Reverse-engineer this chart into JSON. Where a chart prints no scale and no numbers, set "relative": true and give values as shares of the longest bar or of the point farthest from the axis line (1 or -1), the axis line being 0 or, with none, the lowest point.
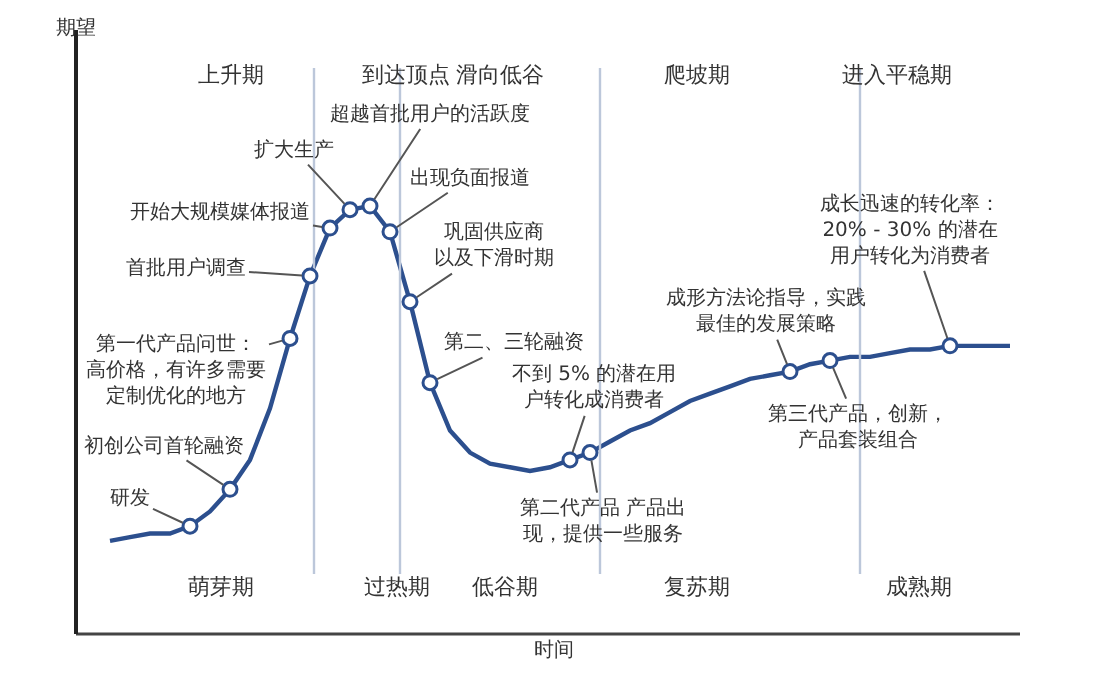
{
  "chart_data": {
    "type": "line",
    "xlabel": "时间",
    "relative": true,
    "tick_labels": false,
    "categories": [
      null,
      null,
      null,
      null,
      null,
      null,
      null,
      null,
      null,
      null,
      null,
      null,
      null,
      null,
      null,
      null,
      null,
      null,
      null,
      null,
      null,
      null,
      null,
      null,
      null,
      null,
      null,
      null,
      null,
      null,
      null,
      null,
      null,
      null,
      null,
      null,
      null,
      null,
      null,
      null,
      null,
      null,
      null,
      null,
      null,
      null
    ],
    "series": [
      {
        "color": "#2c4f8e",
        "values": [
          0.09,
          0.1,
          0.11,
          0.11,
          0.13,
          0.17,
          0.23,
          0.31,
          0.45,
          0.64,
          0.81,
          0.94,
          0.99,
          1,
          0.93,
          0.74,
          0.52,
          0.39,
          0.33,
          0.3,
          0.29,
          0.28,
          0.29,
          0.31,
          0.33,
          0.36,
          0.39,
          0.41,
          0.44,
          0.47,
          0.49,
          0.51,
          0.53,
          0.54,
          0.55,
          0.57,
          0.58,
          0.59,
          0.59,
          0.6,
          0.61,
          0.61,
          0.62,
          0.62,
          0.62,
          0.62
        ]
      }
    ],
    "annotations": [
      "上升期",
      "到达顶点",
      "滑向低谷",
      "爬坡期",
      "进入平稳期",
      "萌芽期",
      "过热期",
      "低谷期",
      "复苏期",
      "成熟期",
      "研发",
      "初创公司首轮融资",
      "第一代产品问世：高价格，有许多需要定制优化的地方",
      "首批用户调查",
      "开始大规模媒体报道",
      "扩大生产",
      "超越首批用户的活跃度",
      "出现负面报道",
      "巩固供应商以及下滑时期",
      "第二、三轮融资",
      "不到 5% 的潜在用户转化成消费者",
      "第二代产品 产品出现，提供一些服务",
      "成形方法论指导，实践最佳的发展策略",
      "第三代产品，创新，产品套装组合",
      "成长迅速的转化率：20% - 30% 的潜在用户转化为消费者",
      "期望"
    ]
  }
}
